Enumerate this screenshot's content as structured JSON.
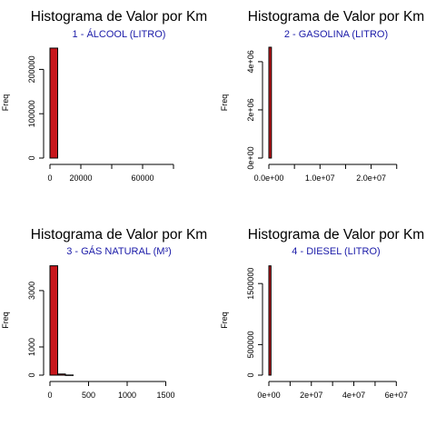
{
  "colors": {
    "bar_fill": "#c8171c",
    "subtitle": "#1a1aa8"
  },
  "chart_data": [
    {
      "type": "bar",
      "title": "Histograma de Valor por Km",
      "subtitle": "1 - ÁLCOOL (LITRO)",
      "ylabel": "Freq",
      "xlim": [
        0,
        90000
      ],
      "ylim": [
        0,
        250000
      ],
      "x_ticks": [
        0,
        20000,
        40000,
        60000,
        80000
      ],
      "x_tick_labels": [
        "0",
        "20000",
        "",
        "60000",
        ""
      ],
      "y_ticks": [
        0,
        100000,
        200000
      ],
      "y_tick_labels": [
        "0",
        "100000",
        "200000"
      ],
      "bins": [
        {
          "start": 0,
          "end": 5000,
          "count": 248000
        }
      ]
    },
    {
      "type": "bar",
      "title": "Histograma de Valor por Km",
      "subtitle": "2 - GASOLINA (LITRO)",
      "ylabel": "Freq",
      "xlim": [
        0,
        27000000
      ],
      "ylim": [
        0,
        4600000
      ],
      "x_ticks": [
        0,
        5000000,
        10000000,
        15000000,
        20000000,
        25000000
      ],
      "x_tick_labels": [
        "0.0e+00",
        "",
        "1.0e+07",
        "",
        "2.0e+07",
        ""
      ],
      "y_ticks": [
        0,
        2000000,
        4000000
      ],
      "y_tick_labels": [
        "0e+00",
        "2e+06",
        "4e+06"
      ],
      "bins": [
        {
          "start": 0,
          "end": 500000,
          "count": 4600000
        }
      ]
    },
    {
      "type": "bar",
      "title": "Histograma de Valor por Km",
      "subtitle": "3 - GÁS NATURAL (M³)",
      "ylabel": "Freq",
      "xlim": [
        0,
        1800
      ],
      "ylim": [
        0,
        3900
      ],
      "x_ticks": [
        0,
        500,
        1000,
        1500
      ],
      "x_tick_labels": [
        "0",
        "500",
        "1000",
        "1500"
      ],
      "y_ticks": [
        0,
        1000,
        3000
      ],
      "y_tick_labels": [
        "0",
        "1000",
        "3000"
      ],
      "bins": [
        {
          "start": 0,
          "end": 100,
          "count": 3880
        },
        {
          "start": 100,
          "end": 200,
          "count": 40
        },
        {
          "start": 200,
          "end": 300,
          "count": 5
        }
      ]
    },
    {
      "type": "bar",
      "title": "Histograma de Valor por Km",
      "subtitle": "4 - DIESEL (LITRO)",
      "ylabel": "Freq",
      "xlim": [
        0,
        65000000
      ],
      "ylim": [
        0,
        1800000
      ],
      "x_ticks": [
        0,
        10000000,
        20000000,
        30000000,
        40000000,
        50000000,
        60000000
      ],
      "x_tick_labels": [
        "0e+00",
        "",
        "2e+07",
        "",
        "4e+07",
        "",
        "6e+07"
      ],
      "y_ticks": [
        0,
        500000,
        1500000
      ],
      "y_tick_labels": [
        "0",
        "500000",
        "1500000"
      ],
      "bins": [
        {
          "start": 0,
          "end": 1000000,
          "count": 1790000
        }
      ]
    }
  ]
}
